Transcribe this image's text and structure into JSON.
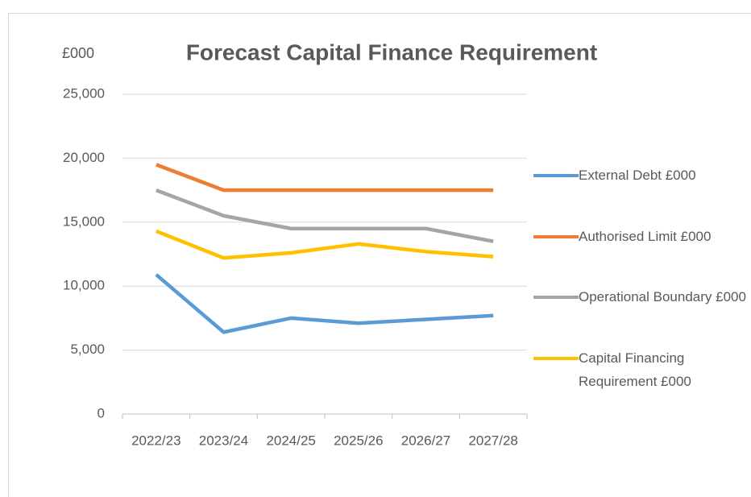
{
  "chart_data": {
    "type": "line",
    "title": "Forecast Capital Finance Requirement",
    "y_label": "£000",
    "categories": [
      "2022/23",
      "2023/24",
      "2024/25",
      "2025/26",
      "2026/27",
      "2027/28"
    ],
    "series": [
      {
        "name": "External Debt £000",
        "color": "#5b9bd5",
        "values": [
          10900,
          6400,
          7500,
          7100,
          7400,
          7700
        ]
      },
      {
        "name": "Authorised Limit £000",
        "color": "#ed7d31",
        "values": [
          19500,
          17500,
          17500,
          17500,
          17500,
          17500
        ]
      },
      {
        "name": "Operational Boundary £000",
        "color": "#a5a5a5",
        "values": [
          17500,
          15500,
          14500,
          14500,
          14500,
          13500
        ]
      },
      {
        "name": "Capital Financing Requirement £000",
        "color": "#ffc000",
        "values": [
          14300,
          12200,
          12600,
          13300,
          12700,
          12300
        ]
      }
    ],
    "ylim": [
      0,
      25000
    ],
    "yticks": [
      0,
      {
        "value": 5000,
        "label": "5,000"
      },
      {
        "value": 10000,
        "label": "10,000"
      },
      {
        "value": 15000,
        "label": "15,000"
      },
      {
        "value": 20000,
        "label": "20,000"
      },
      {
        "value": 25000,
        "label": "25,000"
      }
    ],
    "grid": true,
    "legend": "right"
  }
}
